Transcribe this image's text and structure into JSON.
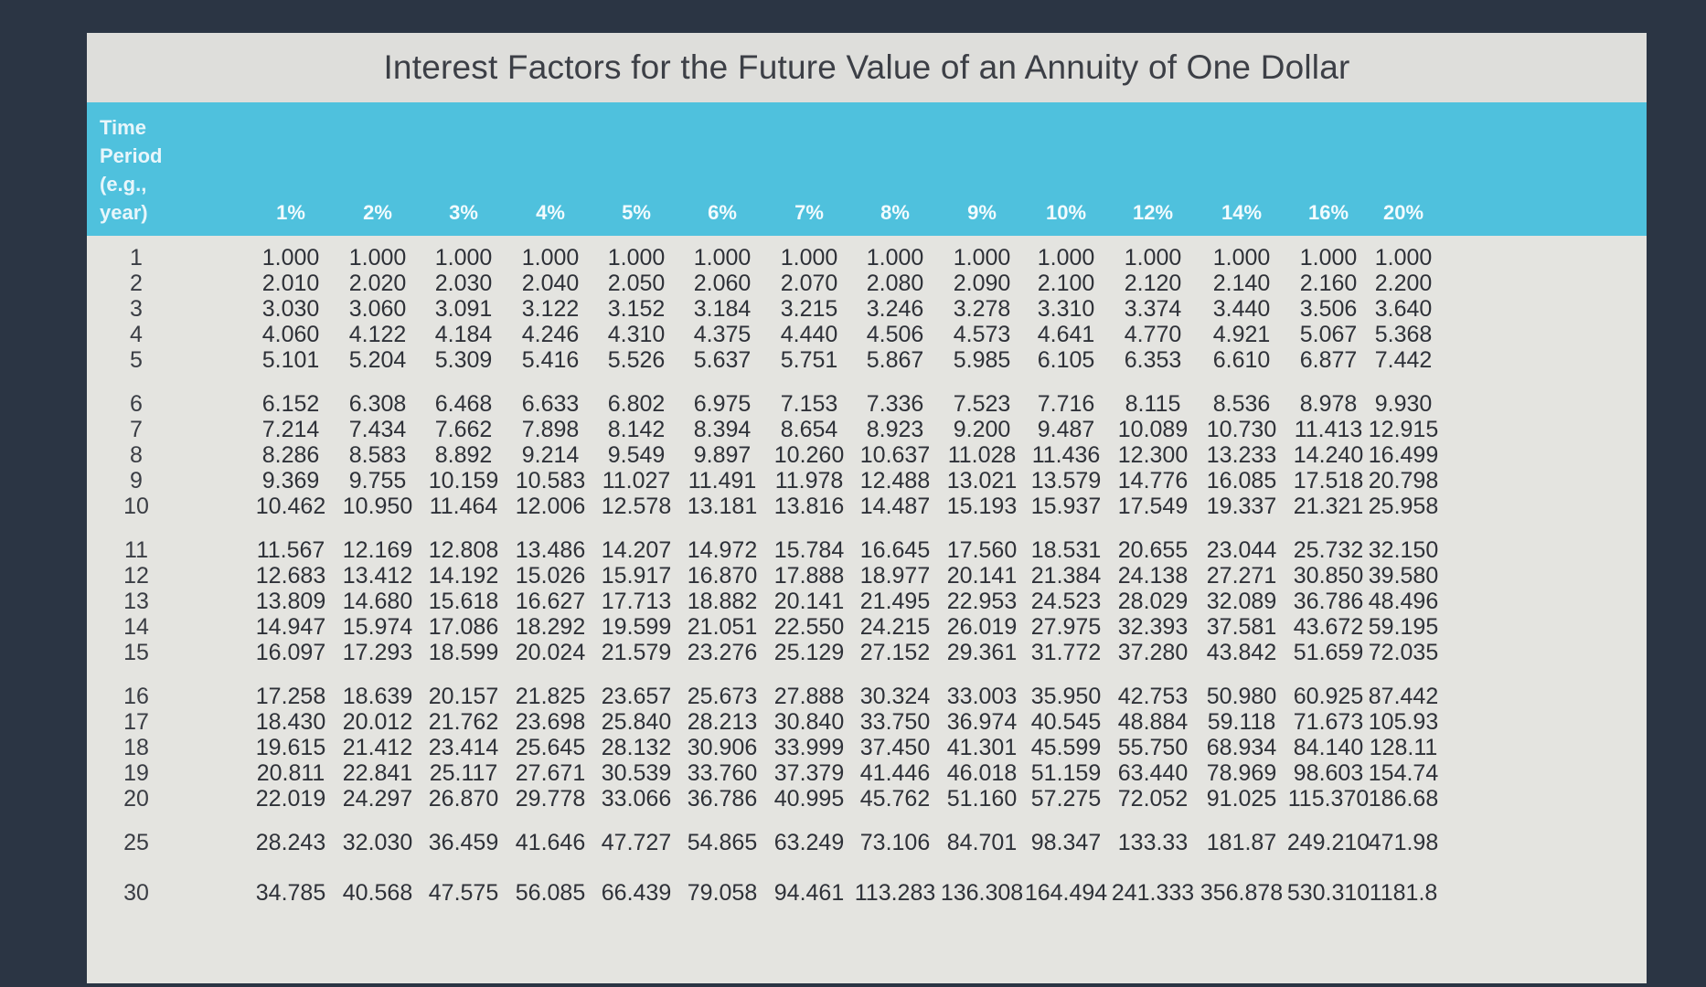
{
  "title": "Interest Factors for the Future Value of an Annuity of One Dollar",
  "period_header": "Time\nPeriod\n(e.g.,\nyear)",
  "rates": [
    "1%",
    "2%",
    "3%",
    "4%",
    "5%",
    "6%",
    "7%",
    "8%",
    "9%",
    "10%",
    "12%",
    "14%",
    "16%",
    "20%"
  ],
  "colors": {
    "header": "#4fc1dd",
    "title_bar": "#dededb",
    "body": "#e4e4e0",
    "text": "#2e3138"
  },
  "rows": [
    {
      "period": "1",
      "values": [
        "1.000",
        "1.000",
        "1.000",
        "1.000",
        "1.000",
        "1.000",
        "1.000",
        "1.000",
        "1.000",
        "1.000",
        "1.000",
        "1.000",
        "1.000",
        "1.000"
      ]
    },
    {
      "period": "2",
      "values": [
        "2.010",
        "2.020",
        "2.030",
        "2.040",
        "2.050",
        "2.060",
        "2.070",
        "2.080",
        "2.090",
        "2.100",
        "2.120",
        "2.140",
        "2.160",
        "2.200"
      ]
    },
    {
      "period": "3",
      "values": [
        "3.030",
        "3.060",
        "3.091",
        "3.122",
        "3.152",
        "3.184",
        "3.215",
        "3.246",
        "3.278",
        "3.310",
        "3.374",
        "3.440",
        "3.506",
        "3.640"
      ]
    },
    {
      "period": "4",
      "values": [
        "4.060",
        "4.122",
        "4.184",
        "4.246",
        "4.310",
        "4.375",
        "4.440",
        "4.506",
        "4.573",
        "4.641",
        "4.770",
        "4.921",
        "5.067",
        "5.368"
      ]
    },
    {
      "period": "5",
      "values": [
        "5.101",
        "5.204",
        "5.309",
        "5.416",
        "5.526",
        "5.637",
        "5.751",
        "5.867",
        "5.985",
        "6.105",
        "6.353",
        "6.610",
        "6.877",
        "7.442"
      ]
    },
    {
      "period": "6",
      "values": [
        "6.152",
        "6.308",
        "6.468",
        "6.633",
        "6.802",
        "6.975",
        "7.153",
        "7.336",
        "7.523",
        "7.716",
        "8.115",
        "8.536",
        "8.978",
        "9.930"
      ]
    },
    {
      "period": "7",
      "values": [
        "7.214",
        "7.434",
        "7.662",
        "7.898",
        "8.142",
        "8.394",
        "8.654",
        "8.923",
        "9.200",
        "9.487",
        "10.089",
        "10.730",
        "11.413",
        "12.915"
      ]
    },
    {
      "period": "8",
      "values": [
        "8.286",
        "8.583",
        "8.892",
        "9.214",
        "9.549",
        "9.897",
        "10.260",
        "10.637",
        "11.028",
        "11.436",
        "12.300",
        "13.233",
        "14.240",
        "16.499"
      ]
    },
    {
      "period": "9",
      "values": [
        "9.369",
        "9.755",
        "10.159",
        "10.583",
        "11.027",
        "11.491",
        "11.978",
        "12.488",
        "13.021",
        "13.579",
        "14.776",
        "16.085",
        "17.518",
        "20.798"
      ]
    },
    {
      "period": "10",
      "values": [
        "10.462",
        "10.950",
        "11.464",
        "12.006",
        "12.578",
        "13.181",
        "13.816",
        "14.487",
        "15.193",
        "15.937",
        "17.549",
        "19.337",
        "21.321",
        "25.958"
      ]
    },
    {
      "period": "11",
      "values": [
        "11.567",
        "12.169",
        "12.808",
        "13.486",
        "14.207",
        "14.972",
        "15.784",
        "16.645",
        "17.560",
        "18.531",
        "20.655",
        "23.044",
        "25.732",
        "32.150"
      ]
    },
    {
      "period": "12",
      "values": [
        "12.683",
        "13.412",
        "14.192",
        "15.026",
        "15.917",
        "16.870",
        "17.888",
        "18.977",
        "20.141",
        "21.384",
        "24.138",
        "27.271",
        "30.850",
        "39.580"
      ]
    },
    {
      "period": "13",
      "values": [
        "13.809",
        "14.680",
        "15.618",
        "16.627",
        "17.713",
        "18.882",
        "20.141",
        "21.495",
        "22.953",
        "24.523",
        "28.029",
        "32.089",
        "36.786",
        "48.496"
      ]
    },
    {
      "period": "14",
      "values": [
        "14.947",
        "15.974",
        "17.086",
        "18.292",
        "19.599",
        "21.051",
        "22.550",
        "24.215",
        "26.019",
        "27.975",
        "32.393",
        "37.581",
        "43.672",
        "59.195"
      ]
    },
    {
      "period": "15",
      "values": [
        "16.097",
        "17.293",
        "18.599",
        "20.024",
        "21.579",
        "23.276",
        "25.129",
        "27.152",
        "29.361",
        "31.772",
        "37.280",
        "43.842",
        "51.659",
        "72.035"
      ]
    },
    {
      "period": "16",
      "values": [
        "17.258",
        "18.639",
        "20.157",
        "21.825",
        "23.657",
        "25.673",
        "27.888",
        "30.324",
        "33.003",
        "35.950",
        "42.753",
        "50.980",
        "60.925",
        "87.442"
      ]
    },
    {
      "period": "17",
      "values": [
        "18.430",
        "20.012",
        "21.762",
        "23.698",
        "25.840",
        "28.213",
        "30.840",
        "33.750",
        "36.974",
        "40.545",
        "48.884",
        "59.118",
        "71.673",
        "105.93"
      ]
    },
    {
      "period": "18",
      "values": [
        "19.615",
        "21.412",
        "23.414",
        "25.645",
        "28.132",
        "30.906",
        "33.999",
        "37.450",
        "41.301",
        "45.599",
        "55.750",
        "68.934",
        "84.140",
        "128.11"
      ]
    },
    {
      "period": "19",
      "values": [
        "20.811",
        "22.841",
        "25.117",
        "27.671",
        "30.539",
        "33.760",
        "37.379",
        "41.446",
        "46.018",
        "51.159",
        "63.440",
        "78.969",
        "98.603",
        "154.74"
      ]
    },
    {
      "period": "20",
      "values": [
        "22.019",
        "24.297",
        "26.870",
        "29.778",
        "33.066",
        "36.786",
        "40.995",
        "45.762",
        "51.160",
        "57.275",
        "72.052",
        "91.025",
        "115.370",
        "186.68"
      ]
    },
    {
      "period": "25",
      "values": [
        "28.243",
        "32.030",
        "36.459",
        "41.646",
        "47.727",
        "54.865",
        "63.249",
        "73.106",
        "84.701",
        "98.347",
        "133.33",
        "181.87",
        "249.210",
        "471.98"
      ]
    },
    {
      "period": "30",
      "values": [
        "34.785",
        "40.568",
        "47.575",
        "56.085",
        "66.439",
        "79.058",
        "94.461",
        "113.283",
        "136.308",
        "164.494",
        "241.333",
        "356.878",
        "530.310",
        "1181.8"
      ]
    }
  ]
}
